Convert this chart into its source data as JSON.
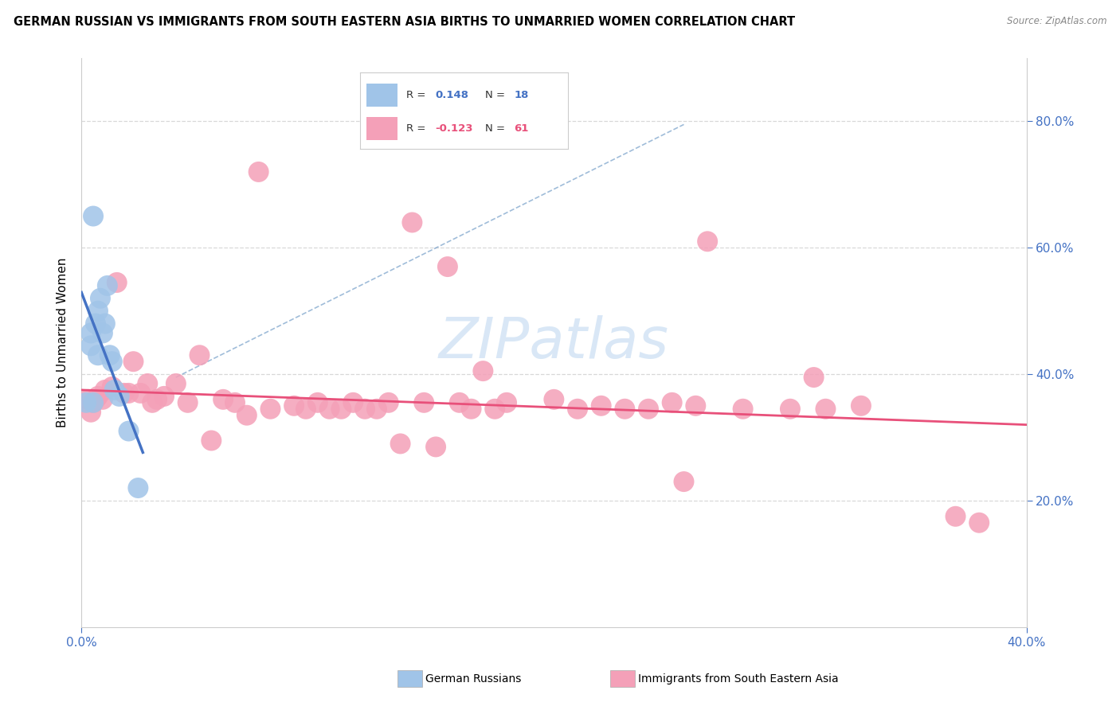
{
  "title": "GERMAN RUSSIAN VS IMMIGRANTS FROM SOUTH EASTERN ASIA BIRTHS TO UNMARRIED WOMEN CORRELATION CHART",
  "source": "Source: ZipAtlas.com",
  "ylabel": "Births to Unmarried Women",
  "xlim": [
    0.0,
    0.4
  ],
  "ylim": [
    0.0,
    0.9
  ],
  "xtick_positions": [
    0.0,
    0.4
  ],
  "xtick_labels": [
    "0.0%",
    "40.0%"
  ],
  "yticks_right": [
    0.2,
    0.4,
    0.6,
    0.8
  ],
  "ytick_labels_right": [
    "20.0%",
    "40.0%",
    "60.0%",
    "80.0%"
  ],
  "blue_r": "0.148",
  "blue_n": "18",
  "pink_r": "-0.123",
  "pink_n": "61",
  "series1_label": "German Russians",
  "series2_label": "Immigrants from South Eastern Asia",
  "blue_color": "#a0c4e8",
  "pink_color": "#f4a0b8",
  "blue_line_color": "#4472c4",
  "pink_line_color": "#e8507a",
  "dash_line_color": "#6090c0",
  "grid_color": "#d8d8d8",
  "bg_color": "#ffffff",
  "blue_scatter_x": [
    0.002,
    0.004,
    0.004,
    0.005,
    0.005,
    0.006,
    0.007,
    0.007,
    0.008,
    0.009,
    0.01,
    0.011,
    0.012,
    0.013,
    0.014,
    0.016,
    0.02,
    0.024
  ],
  "blue_scatter_y": [
    0.355,
    0.445,
    0.465,
    0.65,
    0.355,
    0.48,
    0.5,
    0.43,
    0.52,
    0.465,
    0.48,
    0.54,
    0.43,
    0.42,
    0.375,
    0.365,
    0.31,
    0.22
  ],
  "pink_scatter_x": [
    0.003,
    0.004,
    0.005,
    0.006,
    0.007,
    0.009,
    0.01,
    0.013,
    0.015,
    0.018,
    0.02,
    0.022,
    0.025,
    0.028,
    0.03,
    0.032,
    0.035,
    0.04,
    0.045,
    0.05,
    0.055,
    0.06,
    0.065,
    0.07,
    0.075,
    0.08,
    0.09,
    0.095,
    0.1,
    0.105,
    0.11,
    0.115,
    0.12,
    0.125,
    0.13,
    0.135,
    0.14,
    0.145,
    0.15,
    0.155,
    0.16,
    0.165,
    0.17,
    0.175,
    0.18,
    0.2,
    0.21,
    0.22,
    0.23,
    0.24,
    0.25,
    0.255,
    0.26,
    0.265,
    0.28,
    0.3,
    0.31,
    0.315,
    0.33,
    0.37,
    0.38
  ],
  "pink_scatter_y": [
    0.36,
    0.34,
    0.355,
    0.36,
    0.365,
    0.36,
    0.375,
    0.38,
    0.545,
    0.37,
    0.37,
    0.42,
    0.37,
    0.385,
    0.355,
    0.36,
    0.365,
    0.385,
    0.355,
    0.43,
    0.295,
    0.36,
    0.355,
    0.335,
    0.72,
    0.345,
    0.35,
    0.345,
    0.355,
    0.345,
    0.345,
    0.355,
    0.345,
    0.345,
    0.355,
    0.29,
    0.64,
    0.355,
    0.285,
    0.57,
    0.355,
    0.345,
    0.405,
    0.345,
    0.355,
    0.36,
    0.345,
    0.35,
    0.345,
    0.345,
    0.355,
    0.23,
    0.35,
    0.61,
    0.345,
    0.345,
    0.395,
    0.345,
    0.35,
    0.175,
    0.165
  ],
  "dash_line_x0": 0.04,
  "dash_line_y0": 0.395,
  "dash_line_x1": 0.255,
  "dash_line_y1": 0.795,
  "watermark_text": "ZIPatlas",
  "watermark_color": "#c0d8f0",
  "watermark_alpha": 0.6
}
